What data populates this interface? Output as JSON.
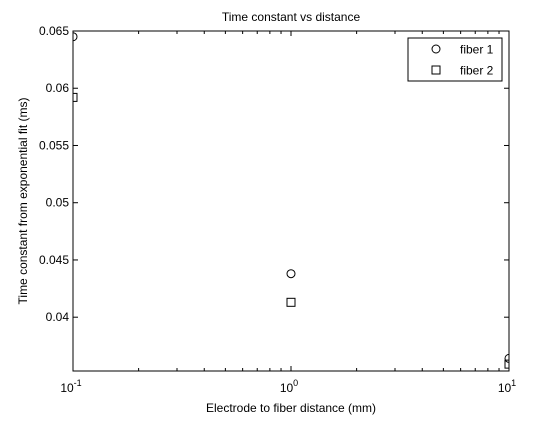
{
  "chart_data": {
    "type": "scatter",
    "title": "Time constant vs distance",
    "xlabel": "Electrode to fiber distance (mm)",
    "ylabel": "Time constant from exponential fit (ms)",
    "xscale": "log",
    "xlim": [
      0.1,
      10
    ],
    "ylim": [
      0.0353,
      0.065
    ],
    "x_ticks": [
      {
        "value": 0.1,
        "base": "10",
        "exp": "-1"
      },
      {
        "value": 1,
        "base": "10",
        "exp": "0"
      },
      {
        "value": 10,
        "base": "10",
        "exp": "1"
      }
    ],
    "y_ticks": [
      {
        "value": 0.04,
        "label": "0.04"
      },
      {
        "value": 0.045,
        "label": "0.045"
      },
      {
        "value": 0.05,
        "label": "0.05"
      },
      {
        "value": 0.055,
        "label": "0.055"
      },
      {
        "value": 0.06,
        "label": "0.06"
      },
      {
        "value": 0.065,
        "label": "0.065"
      }
    ],
    "grid": false,
    "legend_position": "top-right",
    "series": [
      {
        "name": "fiber 1",
        "marker": "circle",
        "color": "#000000",
        "x": [
          0.1,
          1,
          10
        ],
        "y": [
          0.0645,
          0.0438,
          0.0364
        ]
      },
      {
        "name": "fiber 2",
        "marker": "square",
        "color": "#000000",
        "x": [
          0.1,
          1,
          10
        ],
        "y": [
          0.0592,
          0.0413,
          0.0359
        ]
      }
    ]
  }
}
